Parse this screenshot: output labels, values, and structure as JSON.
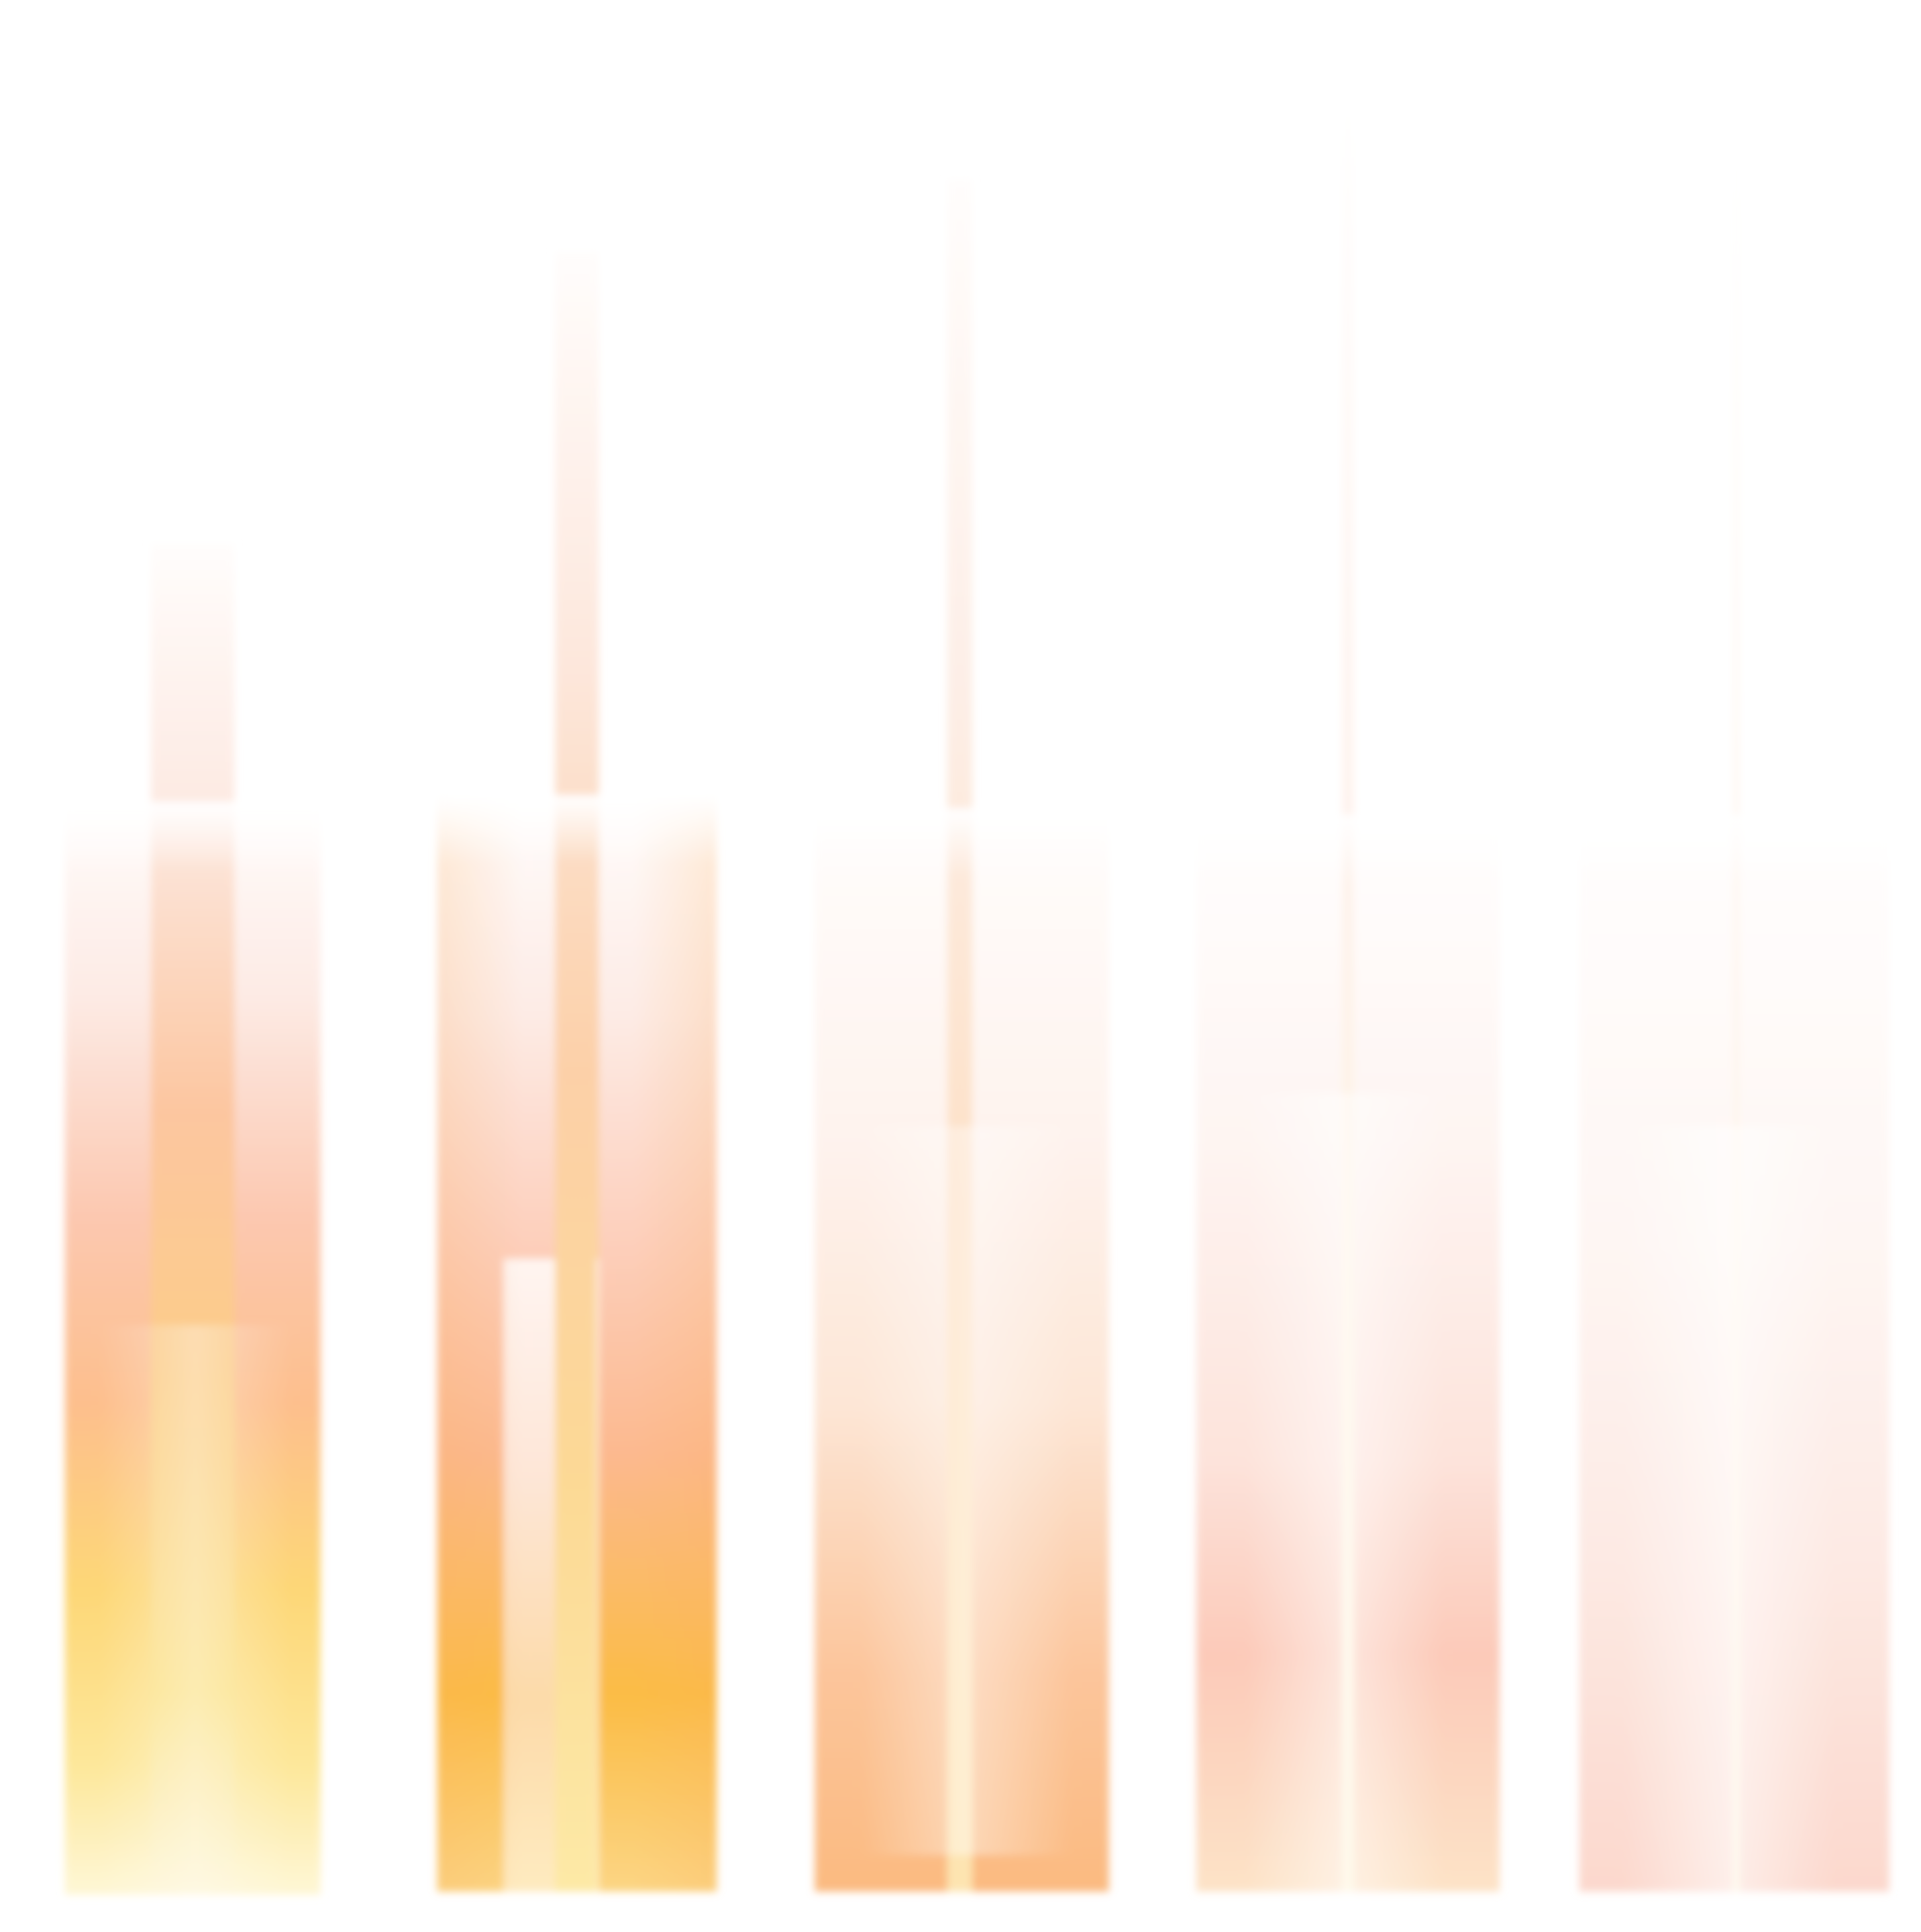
{
  "artwork": {
    "description_free": true,
    "palette": {
      "background": "#ffffff",
      "yellow": "#fcd964",
      "amber": "#fbbb3d",
      "orange": "#f9a765",
      "salmon": "#f8b6a3",
      "blush": "#fde3dc",
      "cream": "#fef6d8"
    },
    "bar_groups": [
      {
        "panel_fill": 0.57,
        "stripe_fill": 0.72
      },
      {
        "panel_fill": 0.58,
        "stripe_fill": 0.86
      },
      {
        "panel_fill": 0.56,
        "stripe_fill": 0.91
      },
      {
        "panel_fill": 0.56,
        "stripe_fill": 0.96
      },
      {
        "panel_fill": 0.56,
        "stripe_fill": 0.94
      }
    ]
  }
}
